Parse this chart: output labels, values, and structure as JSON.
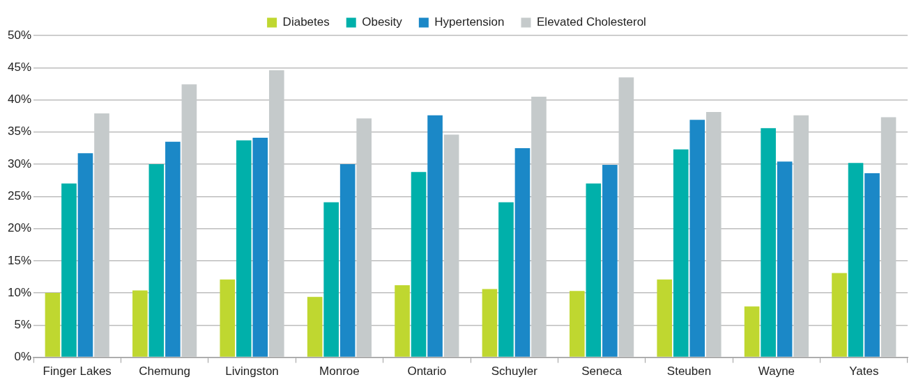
{
  "chart_data": {
    "type": "bar",
    "categories": [
      "Finger Lakes",
      "Chemung",
      "Livingston",
      "Monroe",
      "Ontario",
      "Schuyler",
      "Seneca",
      "Steuben",
      "Wayne",
      "Yates"
    ],
    "series": [
      {
        "name": "Diabetes",
        "color": "#bfd730",
        "values": [
          10.0,
          10.4,
          12.1,
          9.4,
          11.2,
          10.6,
          10.3,
          12.1,
          7.9,
          13.1
        ]
      },
      {
        "name": "Obesity",
        "color": "#00b0aa",
        "values": [
          27.0,
          30.0,
          33.7,
          24.1,
          28.8,
          24.1,
          27.0,
          32.3,
          35.6,
          30.2
        ]
      },
      {
        "name": "Hypertension",
        "color": "#1b88c7",
        "values": [
          31.7,
          33.5,
          34.1,
          30.0,
          37.6,
          32.5,
          29.9,
          36.9,
          30.4,
          28.6
        ]
      },
      {
        "name": "Elevated Cholesterol",
        "color": "#c5cacb",
        "values": [
          37.9,
          42.4,
          44.6,
          37.1,
          34.6,
          40.5,
          43.5,
          38.1,
          37.6,
          37.3
        ]
      }
    ],
    "ylim": [
      0,
      50
    ],
    "yticks": [
      {
        "value": 0,
        "label": "0%"
      },
      {
        "value": 5,
        "label": "5%"
      },
      {
        "value": 10,
        "label": "10%"
      },
      {
        "value": 15,
        "label": "15%"
      },
      {
        "value": 20,
        "label": "20%"
      },
      {
        "value": 25,
        "label": "25%"
      },
      {
        "value": 30,
        "label": "30%"
      },
      {
        "value": 35,
        "label": "35%"
      },
      {
        "value": 40,
        "label": "40%"
      },
      {
        "value": 45,
        "label": "45%"
      },
      {
        "value": 50,
        "label": "50%"
      }
    ],
    "grid": "y",
    "legend": "top"
  }
}
